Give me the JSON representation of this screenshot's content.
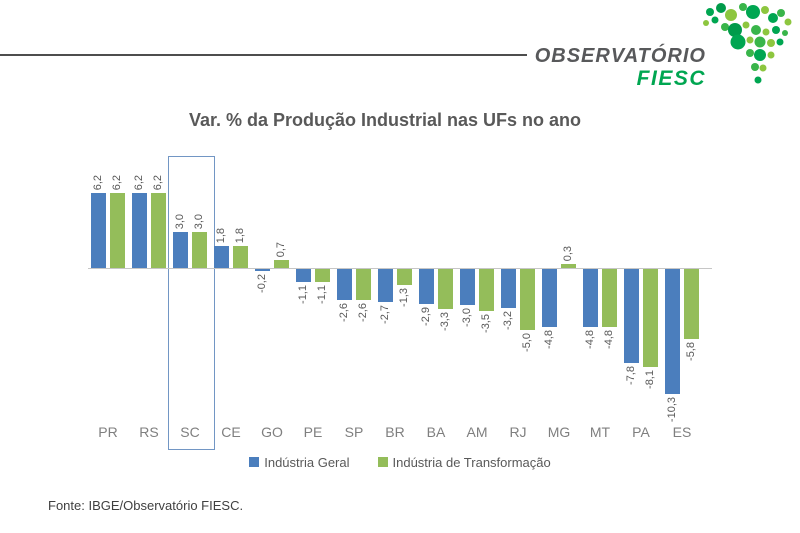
{
  "header": {
    "logo": {
      "top_text": "OBSERVATÓRIO",
      "bottom_text": "FIESC",
      "top_color": "#58595b",
      "bottom_color": "#00a651",
      "rule_color": "#4d4d4d"
    }
  },
  "chart_data": {
    "type": "bar",
    "title": "Var. % da Produção Industrial nas UFs no ano",
    "categories": [
      "PR",
      "RS",
      "SC",
      "CE",
      "GO",
      "PE",
      "SP",
      "BR",
      "BA",
      "AM",
      "RJ",
      "MG",
      "MT",
      "PA",
      "ES"
    ],
    "series": [
      {
        "name": "Indústria Geral",
        "color": "#4b7ebd",
        "values": [
          6.2,
          6.2,
          3.0,
          1.8,
          -0.2,
          -1.1,
          -2.6,
          -2.7,
          -2.9,
          -3.0,
          -3.2,
          -4.8,
          -4.8,
          -7.8,
          -10.3
        ],
        "labels": [
          "6,2",
          "6,2",
          "3,0",
          "1,8",
          "-0,2",
          "-1,1",
          "-2,6",
          "-2,7",
          "-2,9",
          "-3,0",
          "-3,2",
          "-4,8",
          "-4,8",
          "-7,8",
          "-10,3"
        ]
      },
      {
        "name": "Indústria de Transformação",
        "color": "#94bd5a",
        "values": [
          6.2,
          6.2,
          3.0,
          1.8,
          0.7,
          -1.1,
          -2.6,
          -1.3,
          -3.3,
          -3.5,
          -5.0,
          0.3,
          -4.8,
          -8.1,
          -5.8
        ],
        "labels": [
          "6,2",
          "6,2",
          "3,0",
          "1,8",
          "0,7",
          "-1,1",
          "-2,6",
          "-1,3",
          "-3,3",
          "-3,5",
          "-5,0",
          "0,3",
          "-4,8",
          "-8,1",
          "-5,8"
        ]
      }
    ],
    "highlighted_category": "SC",
    "highlight_box_color": "#7296c4",
    "value_label_color": "#595959",
    "category_label_color": "#7f7f7f",
    "axis_line_color": "#c6c6c6",
    "ylim": [
      -10.3,
      6.2
    ],
    "grid": false,
    "y_axis_visible": false,
    "legend_position": "bottom"
  },
  "footer": {
    "source_text": "Fonte: IBGE/Observatório FIESC."
  }
}
